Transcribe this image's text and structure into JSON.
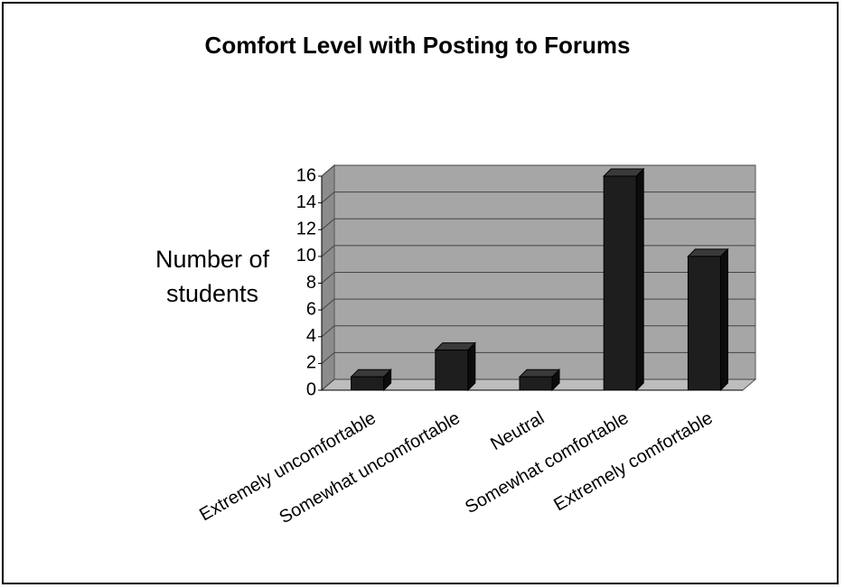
{
  "chart_data": {
    "type": "bar",
    "title": "Comfort Level with Posting to Forums",
    "y_label": "Number of students",
    "categories": [
      "Extremely uncomfortable",
      "Somewhat uncomfortable",
      "Neutral",
      "Somewhat comfortable",
      "Extremely comfortable"
    ],
    "values": [
      1,
      3,
      1,
      16,
      10
    ],
    "color": "#1e1e1e",
    "ylim": [
      0,
      16
    ],
    "yticks": [
      0,
      2,
      4,
      6,
      8,
      10,
      12,
      14,
      16
    ],
    "grid": true
  }
}
